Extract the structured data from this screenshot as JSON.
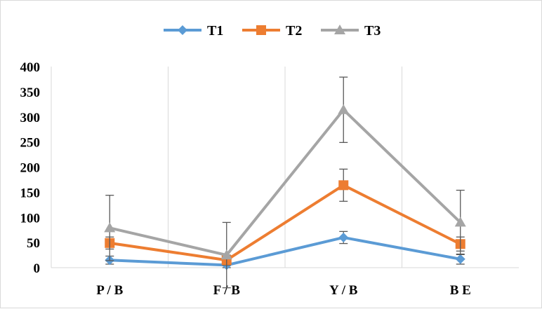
{
  "chart_data": {
    "type": "line",
    "categories": [
      "P / B",
      "F / B",
      "Y / B",
      "B E"
    ],
    "series": [
      {
        "name": "T1",
        "color": "#5B9BD5",
        "marker": "diamond",
        "values": [
          15,
          5,
          60,
          17
        ],
        "error": [
          8,
          5,
          12,
          10
        ]
      },
      {
        "name": "T2",
        "color": "#ED7D31",
        "marker": "square",
        "values": [
          49,
          15,
          164,
          47
        ],
        "error": [
          12,
          10,
          32,
          14
        ]
      },
      {
        "name": "T3",
        "color": "#A5A5A5",
        "marker": "triangle",
        "values": [
          79,
          25,
          314,
          90
        ],
        "error": [
          65,
          65,
          65,
          64
        ]
      }
    ],
    "y_ticks": [
      0,
      50,
      100,
      150,
      200,
      250,
      300,
      350,
      400
    ],
    "ylim": [
      0,
      400
    ],
    "grid": "vertical",
    "legend_position": "top-center"
  }
}
